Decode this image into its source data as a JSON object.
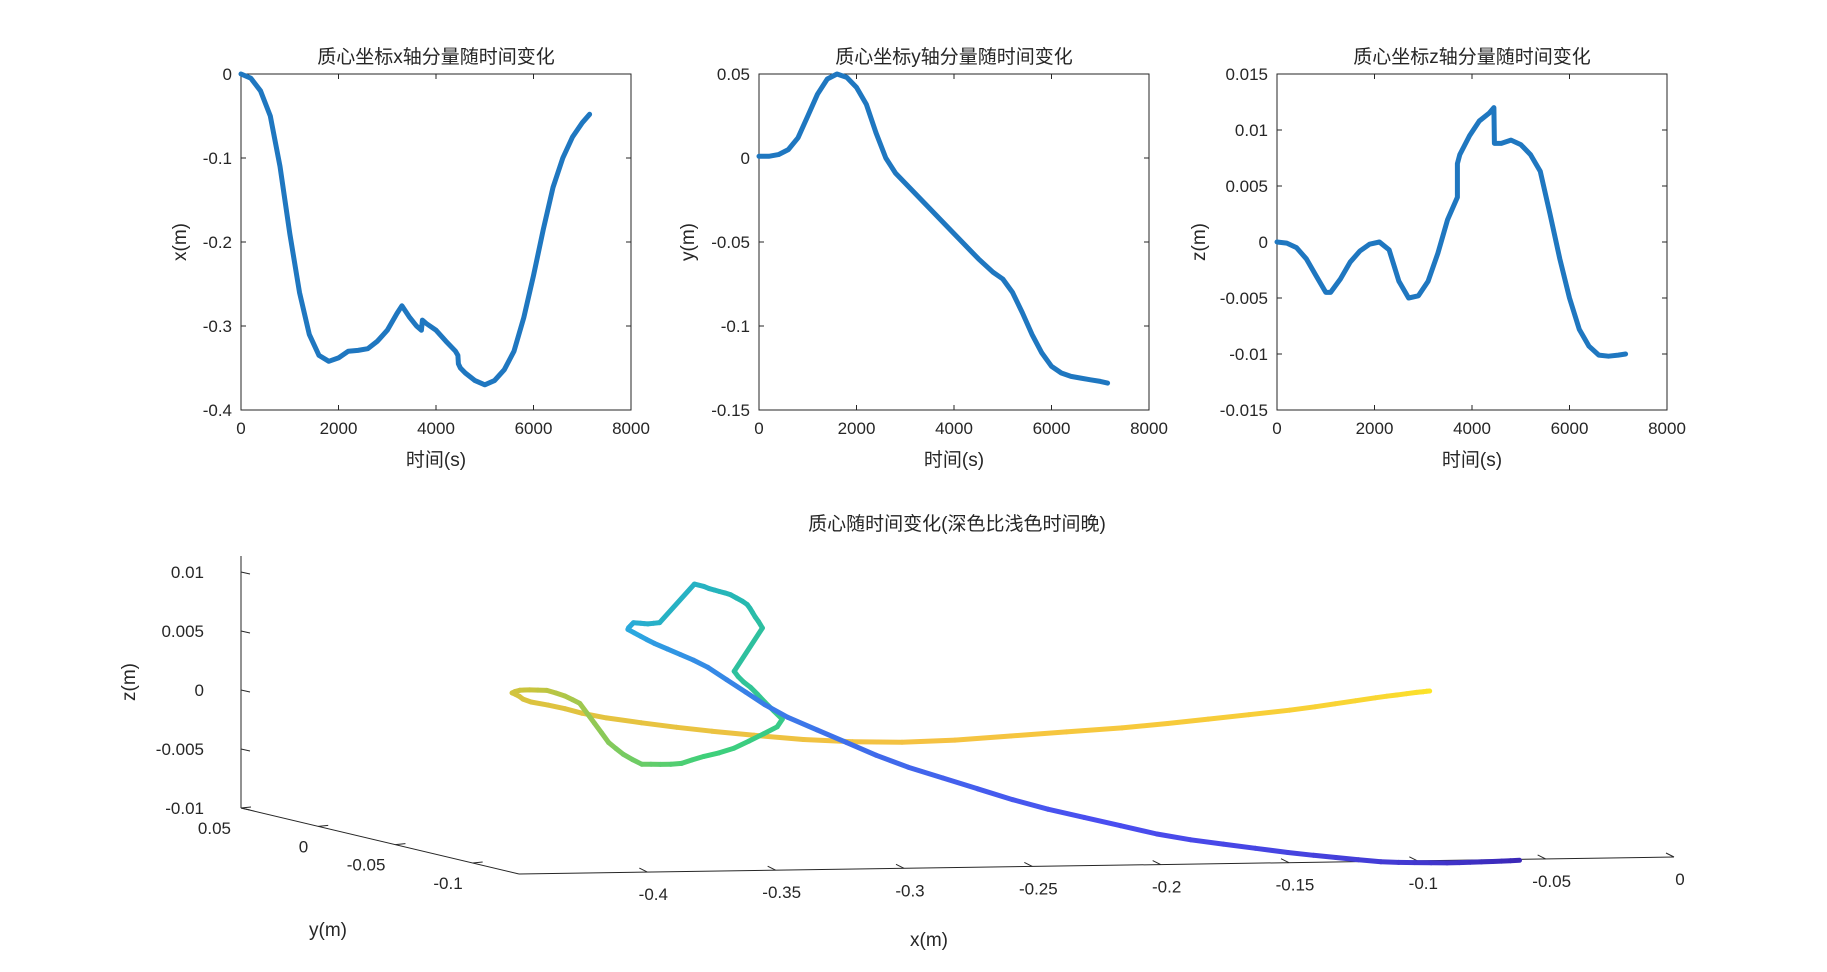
{
  "chart_data": [
    {
      "type": "line",
      "title": "质心坐标x轴分量随时间变化",
      "xlabel": "时间(s)",
      "ylabel": "x(m)",
      "xlim": [
        0,
        8000
      ],
      "ylim": [
        -0.4,
        0
      ],
      "xticks": [
        0,
        2000,
        4000,
        6000,
        8000
      ],
      "yticks": [
        -0.4,
        -0.3,
        -0.2,
        -0.1,
        0
      ],
      "xtick_labels": [
        "0",
        "2000",
        "4000",
        "6000",
        "8000"
      ],
      "ytick_labels": [
        "-0.4",
        "-0.3",
        "-0.2",
        "-0.1",
        "0"
      ],
      "color": "#1f77c0",
      "series": [
        {
          "name": "x",
          "x": [
            0,
            200,
            400,
            600,
            800,
            1000,
            1200,
            1400,
            1600,
            1800,
            2000,
            2200,
            2400,
            2600,
            2800,
            3000,
            3200,
            3300,
            3450,
            3600,
            3700,
            3720,
            3800,
            4000,
            4200,
            4400,
            4450,
            4460,
            4500,
            4600,
            4800,
            5000,
            5200,
            5400,
            5600,
            5800,
            6000,
            6200,
            6400,
            6600,
            6800,
            7000,
            7150
          ],
          "y": [
            0,
            -0.005,
            -0.02,
            -0.05,
            -0.11,
            -0.19,
            -0.26,
            -0.31,
            -0.335,
            -0.342,
            -0.338,
            -0.33,
            -0.329,
            -0.327,
            -0.318,
            -0.305,
            -0.285,
            -0.276,
            -0.289,
            -0.3,
            -0.305,
            -0.293,
            -0.297,
            -0.305,
            -0.318,
            -0.33,
            -0.335,
            -0.345,
            -0.35,
            -0.356,
            -0.365,
            -0.37,
            -0.365,
            -0.352,
            -0.33,
            -0.29,
            -0.24,
            -0.185,
            -0.135,
            -0.1,
            -0.075,
            -0.058,
            -0.048
          ]
        }
      ]
    },
    {
      "type": "line",
      "title": "质心坐标y轴分量随时间变化",
      "xlabel": "时间(s)",
      "ylabel": "y(m)",
      "xlim": [
        0,
        8000
      ],
      "ylim": [
        -0.15,
        0.05
      ],
      "xticks": [
        0,
        2000,
        4000,
        6000,
        8000
      ],
      "yticks": [
        -0.15,
        -0.1,
        -0.05,
        0,
        0.05
      ],
      "xtick_labels": [
        "0",
        "2000",
        "4000",
        "6000",
        "8000"
      ],
      "ytick_labels": [
        "-0.15",
        "-0.1",
        "-0.05",
        "0",
        "0.05"
      ],
      "color": "#1f77c0",
      "series": [
        {
          "name": "y",
          "x": [
            0,
            200,
            400,
            600,
            800,
            1000,
            1200,
            1400,
            1600,
            1800,
            2000,
            2200,
            2400,
            2600,
            2800,
            3000,
            3500,
            4000,
            4500,
            4800,
            5000,
            5200,
            5400,
            5600,
            5800,
            6000,
            6200,
            6400,
            6600,
            6800,
            7000,
            7150
          ],
          "y": [
            0.001,
            0.001,
            0.002,
            0.005,
            0.012,
            0.025,
            0.038,
            0.047,
            0.05,
            0.048,
            0.042,
            0.032,
            0.015,
            0.0,
            -0.009,
            -0.015,
            -0.03,
            -0.045,
            -0.06,
            -0.068,
            -0.072,
            -0.08,
            -0.092,
            -0.105,
            -0.116,
            -0.124,
            -0.128,
            -0.13,
            -0.131,
            -0.132,
            -0.133,
            -0.134
          ]
        }
      ]
    },
    {
      "type": "line",
      "title": "质心坐标z轴分量随时间变化",
      "xlabel": "时间(s)",
      "ylabel": "z(m)",
      "xlim": [
        0,
        8000
      ],
      "ylim": [
        -0.015,
        0.015
      ],
      "xticks": [
        0,
        2000,
        4000,
        6000,
        8000
      ],
      "yticks": [
        -0.015,
        -0.01,
        -0.005,
        0,
        0.005,
        0.01,
        0.015
      ],
      "xtick_labels": [
        "0",
        "2000",
        "4000",
        "6000",
        "8000"
      ],
      "ytick_labels": [
        "-0.015",
        "-0.01",
        "-0.005",
        "0",
        "0.005",
        "0.01",
        "0.015"
      ],
      "color": "#1f77c0",
      "series": [
        {
          "name": "z",
          "x": [
            0,
            200,
            400,
            600,
            800,
            1000,
            1100,
            1300,
            1500,
            1700,
            1900,
            2100,
            2300,
            2500,
            2700,
            2900,
            3100,
            3300,
            3500,
            3700,
            3700,
            3750,
            3950,
            4150,
            4350,
            4450,
            4460,
            4600,
            4800,
            5000,
            5200,
            5400,
            5600,
            5800,
            6000,
            6200,
            6400,
            6600,
            6800,
            7000,
            7150
          ],
          "y": [
            0,
            -0.0001,
            -0.0005,
            -0.0015,
            -0.003,
            -0.0045,
            -0.0045,
            -0.0033,
            -0.0018,
            -0.0008,
            -0.0002,
            0.0,
            -0.0007,
            -0.0035,
            -0.005,
            -0.0048,
            -0.0035,
            -0.001,
            0.002,
            0.004,
            0.007,
            0.0078,
            0.0095,
            0.0108,
            0.0115,
            0.012,
            0.0088,
            0.0088,
            0.0091,
            0.0087,
            0.0078,
            0.0063,
            0.0025,
            -0.0015,
            -0.005,
            -0.0078,
            -0.0093,
            -0.0101,
            -0.0102,
            -0.0101,
            -0.01
          ]
        }
      ]
    },
    {
      "type": "line3d",
      "title": "质心随时间变化(深色比浅色时间晚)",
      "xlabel": "x(m)",
      "ylabel": "y(m)",
      "zlabel": "z(m)",
      "xticks": [
        -0.4,
        -0.35,
        -0.3,
        -0.25,
        -0.2,
        -0.15,
        -0.1,
        -0.05,
        0
      ],
      "xtick_labels": [
        "-0.4",
        "-0.35",
        "-0.3",
        "-0.25",
        "-0.2",
        "-0.15",
        "-0.1",
        "-0.05",
        "0"
      ],
      "yticks": [
        0.05,
        0,
        -0.05,
        -0.1
      ],
      "ytick_labels": [
        "0.05",
        "0",
        "-0.05",
        "-0.1"
      ],
      "zticks": [
        0.01,
        0.005,
        0,
        -0.005,
        -0.01
      ],
      "ztick_labels": [
        "0.01",
        "0.005",
        "0",
        "-0.005",
        "-0.01"
      ],
      "xlim": [
        -0.45,
        0
      ],
      "ylim": [
        -0.13,
        0.05
      ],
      "zlim": [
        -0.01,
        0.01
      ],
      "colormap": [
        "#fde725",
        "#f5c242",
        "#c9c43d",
        "#3ed07a",
        "#25b8b2",
        "#2aa8e0",
        "#4a4ef0",
        "#3b28b8"
      ],
      "colormap_note": "earliest point uses the first color; latest point uses the last (darker)"
    }
  ]
}
